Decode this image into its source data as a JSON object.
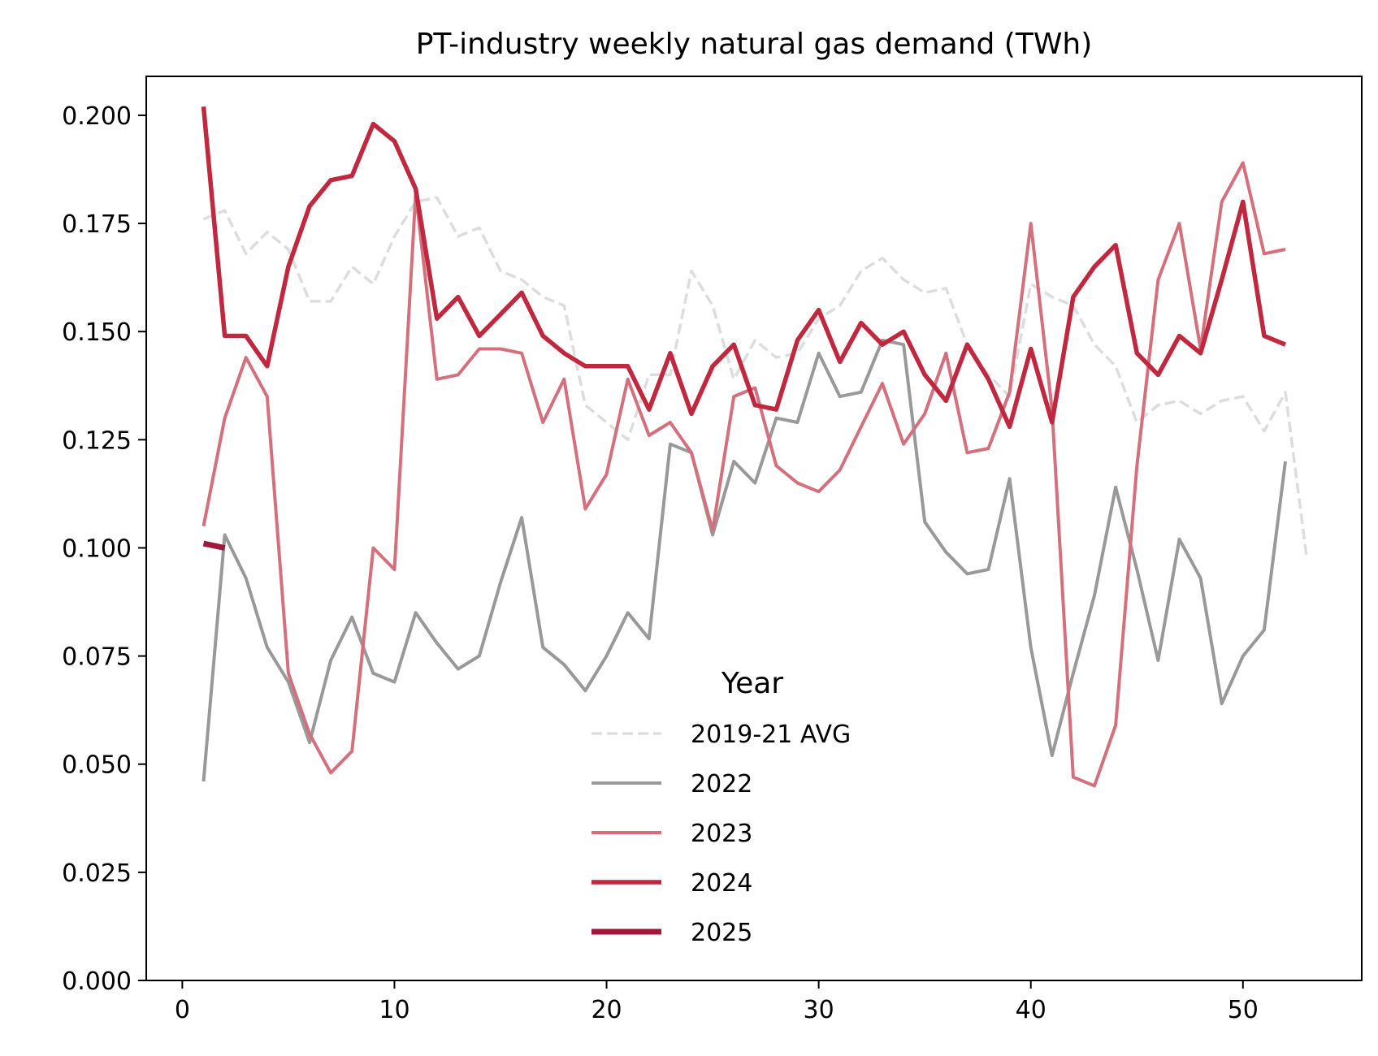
{
  "chart_data": {
    "type": "line",
    "title": "PT-industry weekly natural gas demand (TWh)",
    "xlabel": "",
    "ylabel": "",
    "xlim": [
      -1.7,
      55.6
    ],
    "ylim": [
      0,
      0.209
    ],
    "xticks": [
      0,
      10,
      20,
      30,
      40,
      50
    ],
    "xtick_labels": [
      "0",
      "10",
      "20",
      "30",
      "40",
      "50"
    ],
    "yticks": [
      0,
      0.025,
      0.05,
      0.075,
      0.1,
      0.125,
      0.15,
      0.175,
      0.2
    ],
    "ytick_labels": [
      "0.000",
      "0.025",
      "0.050",
      "0.075",
      "0.100",
      "0.125",
      "0.150",
      "0.175",
      "0.200"
    ],
    "grid": false,
    "legend": {
      "title": "Year",
      "placement": "lower-center"
    },
    "series": [
      {
        "name": "2019-21 AVG",
        "color": "#dddddd",
        "dashed": true,
        "width": 3.5,
        "x": [
          1,
          2,
          3,
          4,
          5,
          6,
          7,
          8,
          9,
          10,
          11,
          12,
          13,
          14,
          15,
          16,
          17,
          18,
          19,
          20,
          21,
          22,
          23,
          24,
          25,
          26,
          27,
          28,
          29,
          30,
          31,
          32,
          33,
          34,
          35,
          36,
          37,
          38,
          39,
          40,
          41,
          42,
          43,
          44,
          45,
          46,
          47,
          48,
          49,
          50,
          51,
          52,
          53
        ],
        "values": [
          0.176,
          0.178,
          0.168,
          0.173,
          0.169,
          0.157,
          0.157,
          0.165,
          0.161,
          0.172,
          0.18,
          0.181,
          0.172,
          0.174,
          0.164,
          0.162,
          0.158,
          0.156,
          0.133,
          0.129,
          0.125,
          0.14,
          0.14,
          0.164,
          0.156,
          0.139,
          0.148,
          0.144,
          0.145,
          0.153,
          0.156,
          0.164,
          0.167,
          0.162,
          0.159,
          0.16,
          0.147,
          0.14,
          0.135,
          0.161,
          0.158,
          0.156,
          0.147,
          0.142,
          0.129,
          0.133,
          0.134,
          0.131,
          0.134,
          0.135,
          0.127,
          0.136,
          0.098
        ]
      },
      {
        "name": "2022",
        "color": "#999999",
        "dashed": false,
        "width": 4,
        "x": [
          1,
          2,
          3,
          4,
          5,
          6,
          7,
          8,
          9,
          10,
          11,
          12,
          13,
          14,
          15,
          16,
          17,
          18,
          19,
          20,
          21,
          22,
          23,
          24,
          25,
          26,
          27,
          28,
          29,
          30,
          31,
          32,
          33,
          34,
          35,
          36,
          37,
          38,
          39,
          40,
          41,
          42,
          43,
          44,
          45,
          46,
          47,
          48,
          49,
          50,
          51,
          52
        ],
        "values": [
          0.046,
          0.103,
          0.093,
          0.077,
          0.069,
          0.055,
          0.074,
          0.084,
          0.071,
          0.069,
          0.085,
          0.078,
          0.072,
          0.075,
          0.092,
          0.107,
          0.077,
          0.073,
          0.067,
          0.075,
          0.085,
          0.079,
          0.124,
          0.122,
          0.103,
          0.12,
          0.115,
          0.13,
          0.129,
          0.145,
          0.135,
          0.136,
          0.148,
          0.147,
          0.106,
          0.099,
          0.094,
          0.095,
          0.116,
          0.077,
          0.052,
          0.071,
          0.089,
          0.114,
          0.095,
          0.074,
          0.102,
          0.093,
          0.064,
          0.075,
          0.081,
          0.12
        ]
      },
      {
        "name": "2023",
        "color": "#d4707e",
        "dashed": false,
        "width": 4,
        "x": [
          1,
          2,
          3,
          4,
          5,
          6,
          7,
          8,
          9,
          10,
          11,
          12,
          13,
          14,
          15,
          16,
          17,
          18,
          19,
          20,
          21,
          22,
          23,
          24,
          25,
          26,
          27,
          28,
          29,
          30,
          31,
          32,
          33,
          34,
          35,
          36,
          37,
          38,
          39,
          40,
          41,
          42,
          43,
          44,
          45,
          46,
          47,
          48,
          49,
          50,
          51,
          52
        ],
        "values": [
          0.105,
          0.13,
          0.144,
          0.135,
          0.071,
          0.057,
          0.048,
          0.053,
          0.1,
          0.095,
          0.182,
          0.139,
          0.14,
          0.146,
          0.146,
          0.145,
          0.129,
          0.139,
          0.109,
          0.117,
          0.139,
          0.126,
          0.129,
          0.122,
          0.104,
          0.135,
          0.137,
          0.119,
          0.115,
          0.113,
          0.118,
          0.128,
          0.138,
          0.124,
          0.131,
          0.145,
          0.122,
          0.123,
          0.136,
          0.175,
          0.132,
          0.047,
          0.045,
          0.059,
          0.119,
          0.162,
          0.175,
          0.146,
          0.18,
          0.189,
          0.168,
          0.169
        ]
      },
      {
        "name": "2024",
        "color": "#c0283f",
        "dashed": false,
        "width": 5.5,
        "x": [
          1,
          2,
          3,
          4,
          5,
          6,
          7,
          8,
          9,
          10,
          11,
          12,
          13,
          14,
          15,
          16,
          17,
          18,
          19,
          20,
          21,
          22,
          23,
          24,
          25,
          26,
          27,
          28,
          29,
          30,
          31,
          32,
          33,
          34,
          35,
          36,
          37,
          38,
          39,
          40,
          41,
          42,
          43,
          44,
          45,
          46,
          47,
          48,
          49,
          50,
          51,
          52
        ],
        "values": [
          0.202,
          0.149,
          0.149,
          0.142,
          0.165,
          0.179,
          0.185,
          0.186,
          0.198,
          0.194,
          0.183,
          0.153,
          0.158,
          0.149,
          0.154,
          0.159,
          0.149,
          0.145,
          0.142,
          0.142,
          0.142,
          0.132,
          0.145,
          0.131,
          0.142,
          0.147,
          0.133,
          0.132,
          0.148,
          0.155,
          0.143,
          0.152,
          0.147,
          0.15,
          0.14,
          0.134,
          0.147,
          0.139,
          0.128,
          0.146,
          0.129,
          0.158,
          0.165,
          0.17,
          0.145,
          0.14,
          0.149,
          0.145,
          0.162,
          0.18,
          0.149,
          0.147
        ]
      },
      {
        "name": "2025",
        "color": "#a0193c",
        "dashed": false,
        "width": 7,
        "x": [
          1,
          2
        ],
        "values": [
          0.101,
          0.1
        ]
      }
    ]
  }
}
